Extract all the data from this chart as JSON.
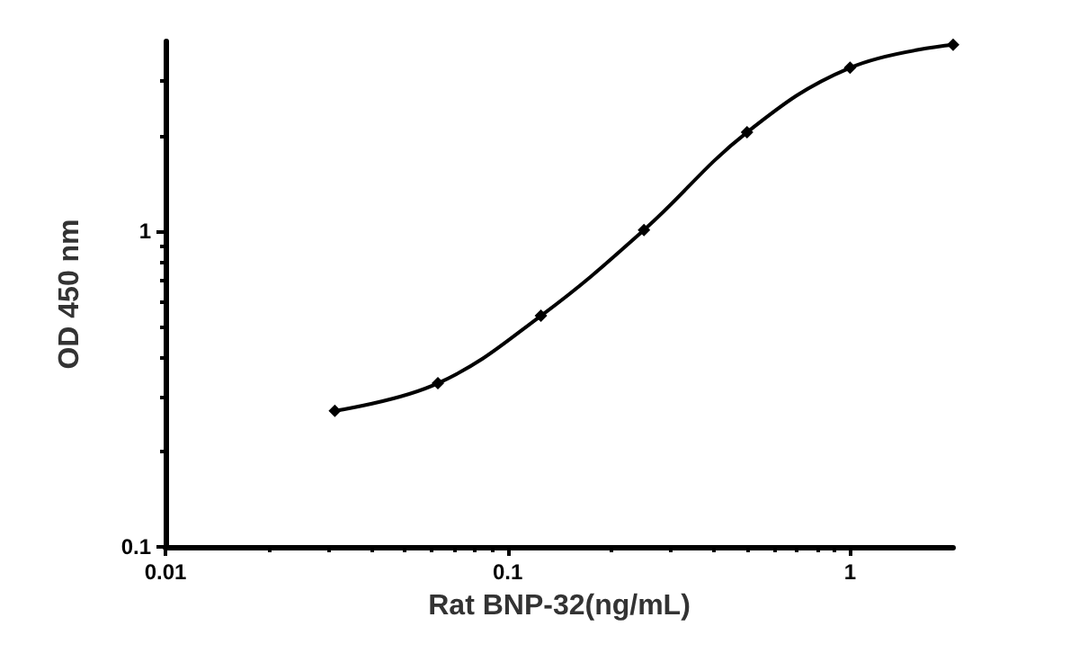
{
  "chart_data": {
    "type": "line",
    "xlabel": "Rat BNP-32(ng/mL)",
    "ylabel": "OD 450 nm",
    "x": [
      0.03125,
      0.0625,
      0.125,
      0.25,
      0.5,
      1,
      2
    ],
    "series": [
      {
        "color": "#000000",
        "values": [
          0.27,
          0.33,
          0.54,
          1.01,
          2.06,
          3.3,
          3.9
        ]
      }
    ],
    "log": "xy",
    "xlim": [
      0.01,
      2
    ],
    "ylim": [
      0.1,
      4
    ],
    "xticks": [
      0.01,
      0.1,
      1
    ],
    "yticks": [
      0.1,
      1
    ],
    "grid": false,
    "marker": "diamond",
    "line_style": "solid"
  }
}
